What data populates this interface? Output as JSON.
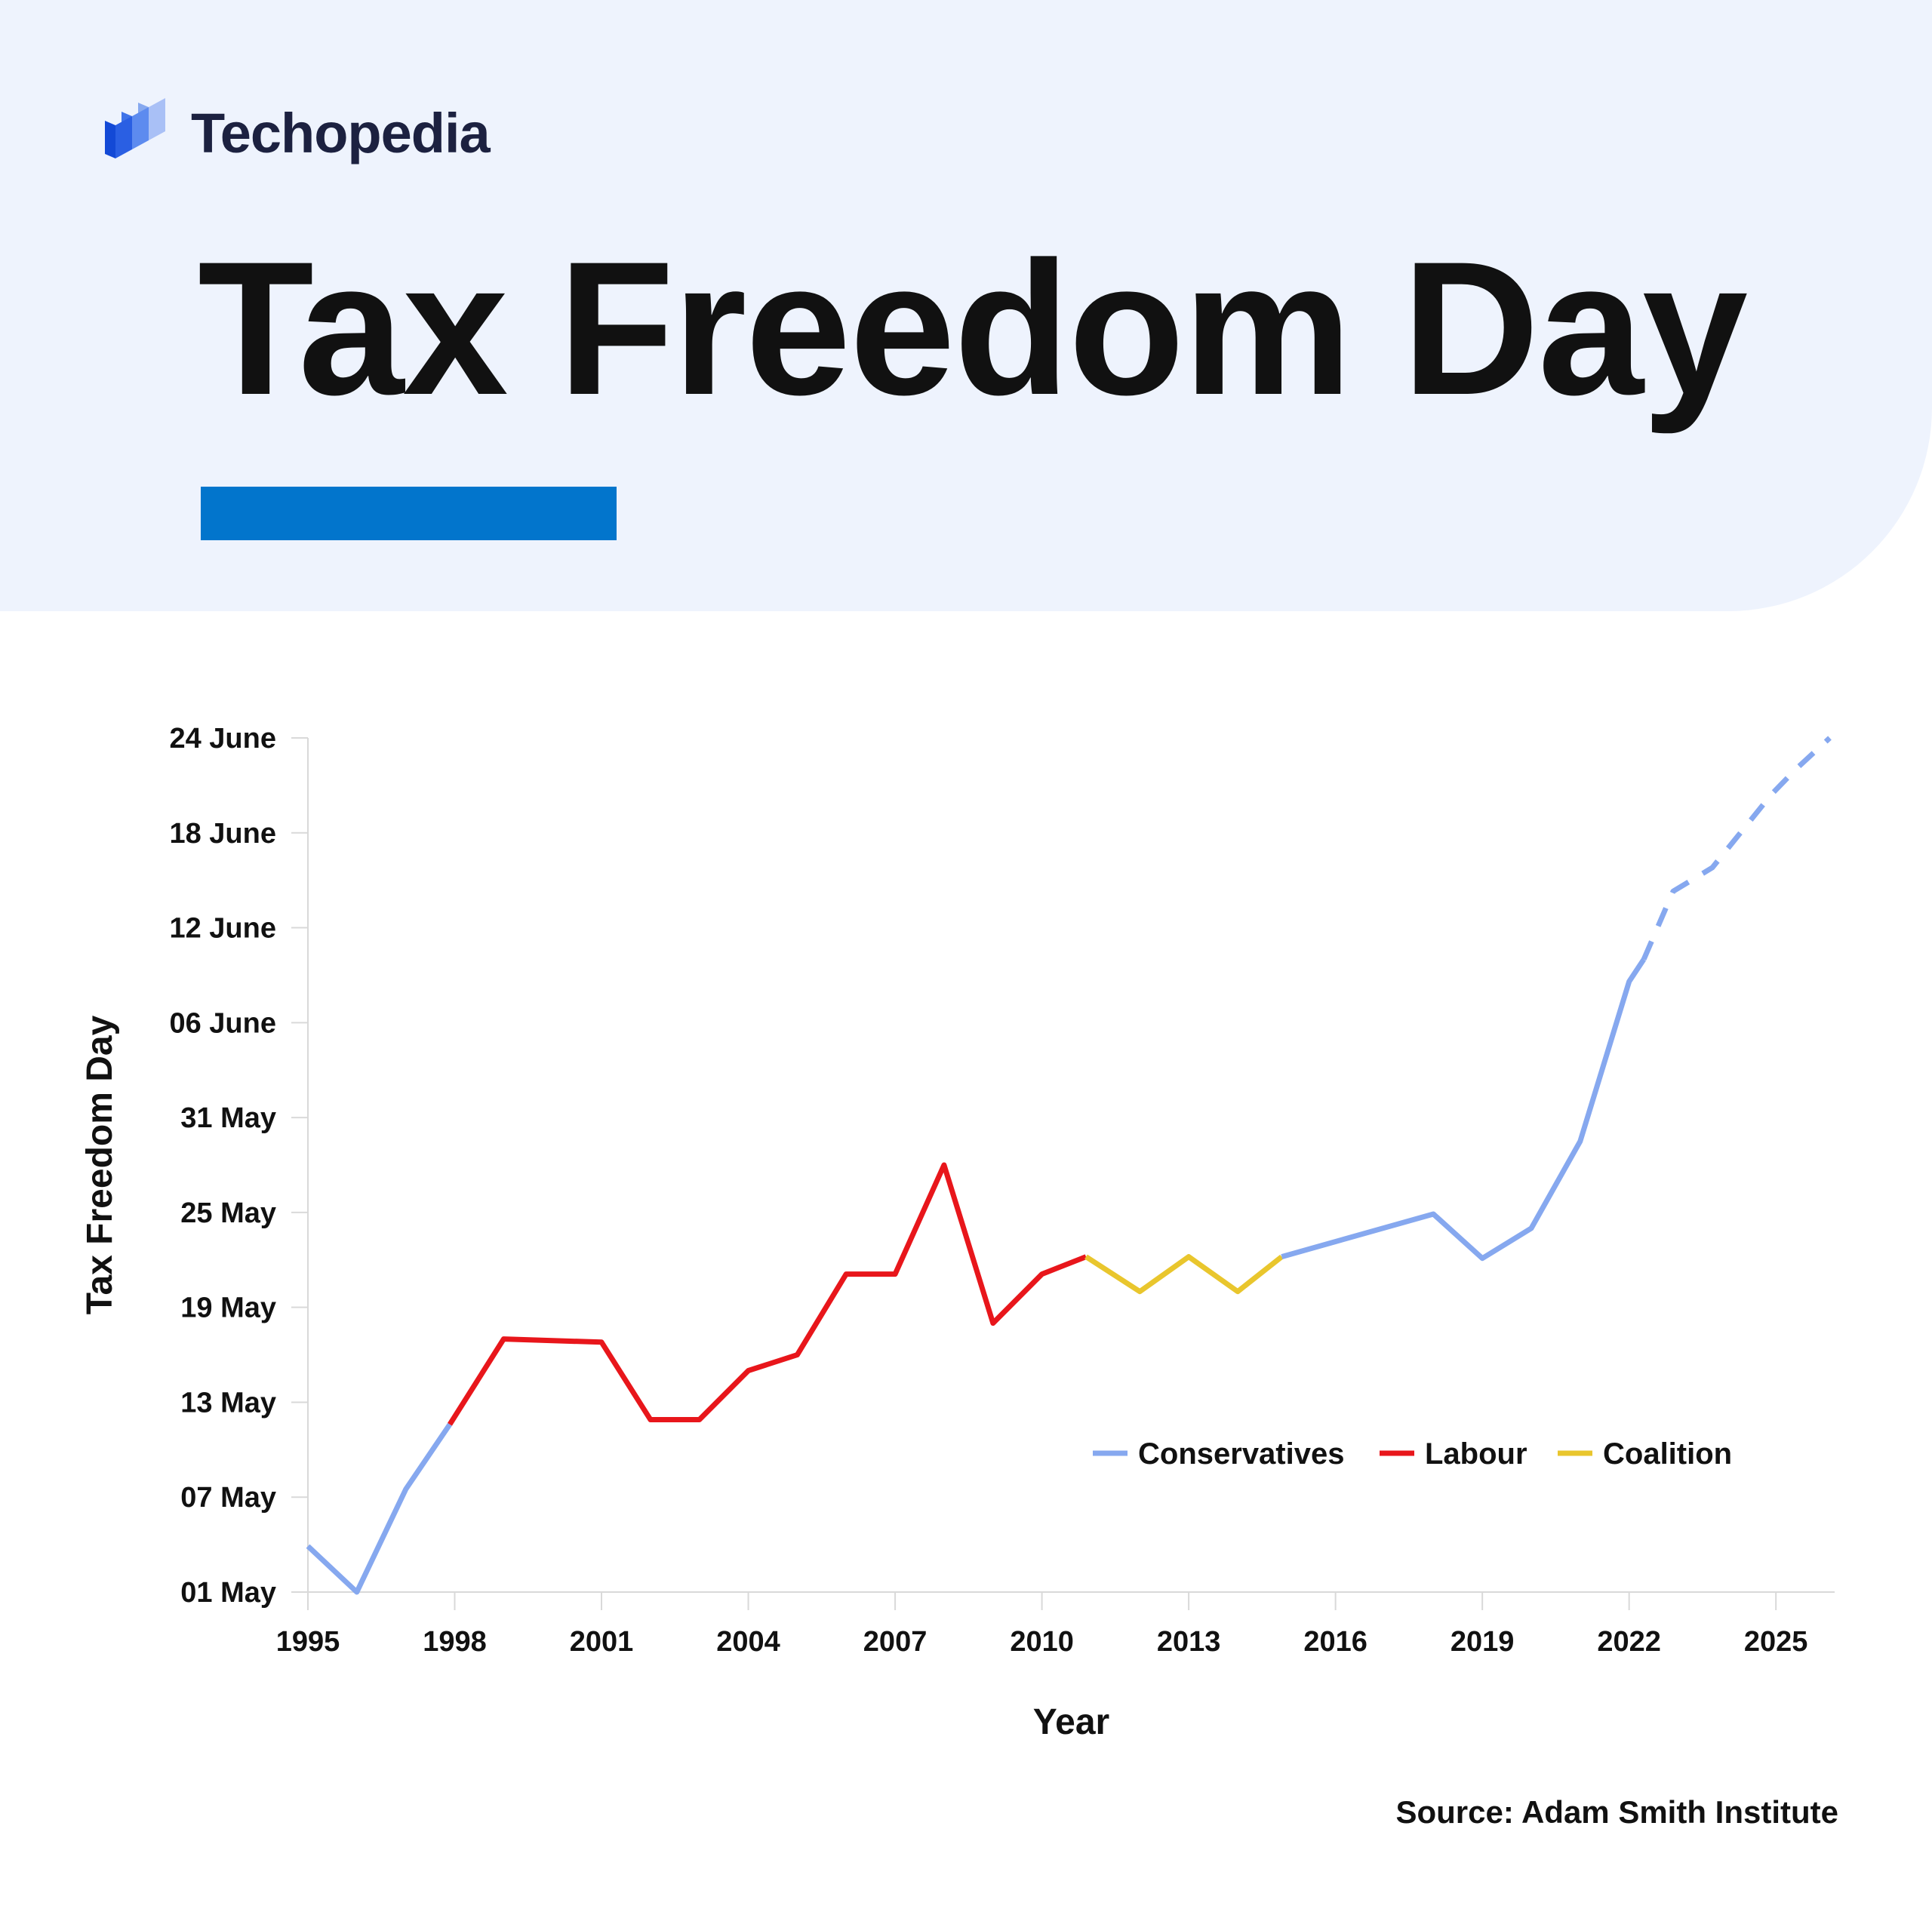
{
  "brand": {
    "name": "Techopedia",
    "logo_icon": "techopedia-cubes-icon"
  },
  "headline": "Tax Freedom Day",
  "colors": {
    "header_bg": "#eef3fd",
    "accent_bar": "#0275cc",
    "conservatives": "#86a8ef",
    "labour": "#e8161b",
    "coalition": "#e9c62d"
  },
  "source": "Source: Adam Smith Institute",
  "chart_data": {
    "type": "line",
    "xlabel": "Year",
    "ylabel": "Tax Freedom Day",
    "x_ticks": [
      "1995",
      "1998",
      "2001",
      "2004",
      "2007",
      "2010",
      "2013",
      "2016",
      "2019",
      "2022",
      "2025"
    ],
    "xlim": [
      1995,
      2026.2
    ],
    "y_ticks": [
      "01 May",
      "07 May",
      "13 May",
      "19 May",
      "25 May",
      "31 May",
      "06 June",
      "12 June",
      "18 June",
      "24 June"
    ],
    "y_unit": "days after 01 May",
    "ylim": [
      0,
      54
    ],
    "grid": false,
    "legend_placement": "lower-right",
    "legend": [
      {
        "label": "Conservatives",
        "color": "#86a8ef"
      },
      {
        "label": "Labour",
        "color": "#e8161b"
      },
      {
        "label": "Coalition",
        "color": "#e9c62d"
      }
    ],
    "segments": [
      {
        "party": "Conservatives",
        "color": "#86a8ef",
        "dashed": false,
        "points": [
          [
            1995,
            2.9
          ],
          [
            1996,
            0
          ],
          [
            1997,
            6.5
          ],
          [
            1997.9,
            10.6
          ]
        ]
      },
      {
        "party": "Labour",
        "color": "#e8161b",
        "dashed": false,
        "points": [
          [
            1997.9,
            10.6
          ],
          [
            1999,
            16
          ],
          [
            2001,
            15.8
          ],
          [
            2002,
            10.9
          ],
          [
            2003,
            10.9
          ],
          [
            2004,
            14
          ],
          [
            2005,
            15
          ],
          [
            2006,
            20.1
          ],
          [
            2007,
            20.1
          ],
          [
            2008,
            27
          ],
          [
            2009,
            17
          ],
          [
            2010,
            20.1
          ],
          [
            2010.9,
            21.2
          ]
        ]
      },
      {
        "party": "Coalition",
        "color": "#e9c62d",
        "dashed": false,
        "points": [
          [
            2010.9,
            21.2
          ],
          [
            2012,
            19
          ],
          [
            2013,
            21.2
          ],
          [
            2014,
            19
          ],
          [
            2014.9,
            21.2
          ]
        ]
      },
      {
        "party": "Conservatives",
        "color": "#86a8ef",
        "dashed": false,
        "points": [
          [
            2014.9,
            21.2
          ],
          [
            2018,
            23.9
          ],
          [
            2019,
            21.1
          ],
          [
            2020,
            23
          ],
          [
            2021,
            28.5
          ],
          [
            2022,
            38.6
          ],
          [
            2022.3,
            40
          ]
        ]
      },
      {
        "party": "Conservatives",
        "color": "#86a8ef",
        "dashed": true,
        "points": [
          [
            2022.3,
            40
          ],
          [
            2022.9,
            44.3
          ],
          [
            2023.7,
            45.8
          ],
          [
            2024.9,
            50.4
          ],
          [
            2025.4,
            52
          ],
          [
            2026.1,
            54
          ]
        ]
      }
    ]
  }
}
